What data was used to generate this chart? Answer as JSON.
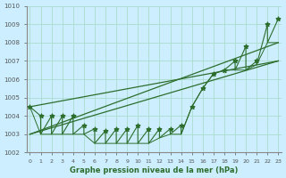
{
  "xlabel": "Graphe pression niveau de la mer (hPa)",
  "background_color": "#cceeff",
  "grid_color": "#aaddcc",
  "line_color": "#2d6e2d",
  "ylim": [
    1002,
    1010
  ],
  "xlim": [
    -0.3,
    23.3
  ],
  "yticks": [
    1002,
    1003,
    1004,
    1005,
    1006,
    1007,
    1008,
    1009,
    1010
  ],
  "xticks": [
    0,
    1,
    2,
    3,
    4,
    5,
    6,
    7,
    8,
    9,
    10,
    11,
    12,
    13,
    14,
    15,
    16,
    17,
    18,
    19,
    20,
    21,
    22,
    23
  ],
  "high_vals": [
    1004.5,
    1004.0,
    1004.0,
    1004.0,
    1004.0,
    1003.5,
    1003.3,
    1003.2,
    1003.3,
    1003.3,
    1003.5,
    1003.3,
    1003.3,
    1003.3,
    1003.5,
    1004.5,
    1005.5,
    1006.3,
    1006.5,
    1007.0,
    1007.8,
    1007.0,
    1009.0,
    1009.3
  ],
  "low_vals": [
    1004.5,
    1003.0,
    1003.0,
    1003.0,
    1003.0,
    1003.0,
    1002.5,
    1002.5,
    1002.5,
    1002.5,
    1002.5,
    1002.5,
    1002.8,
    1003.0,
    1003.0,
    1004.5,
    1005.5,
    1006.3,
    1006.5,
    1006.5,
    1006.5,
    1006.8,
    1008.0,
    1008.0
  ],
  "trend1_x": [
    0,
    23
  ],
  "trend1_y": [
    1004.5,
    1007.0
  ],
  "trend2_x": [
    0,
    23
  ],
  "trend2_y": [
    1003.0,
    1008.0
  ],
  "trend3_x": [
    0,
    23
  ],
  "trend3_y": [
    1003.0,
    1007.0
  ]
}
